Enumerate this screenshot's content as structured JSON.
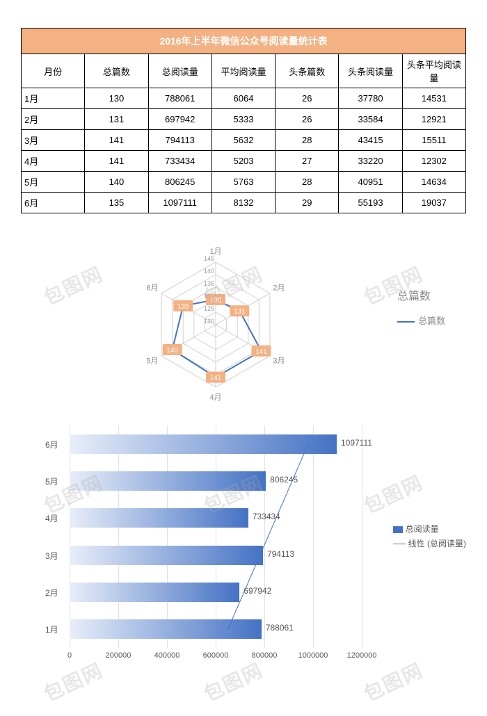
{
  "table": {
    "title": "2016年上半年微信公众号阅读量统计表",
    "title_bg": "#f4b183",
    "title_color": "#ffffff",
    "headers": [
      "月份",
      "总篇数",
      "总阅读量",
      "平均阅读量",
      "头条篇数",
      "头条阅读量",
      "头条平均阅读量"
    ],
    "rows": [
      {
        "month": "1月",
        "a": "130",
        "b": "788061",
        "c": "6064",
        "d": "26",
        "e": "37780",
        "f": "14531"
      },
      {
        "month": "2月",
        "a": "131",
        "b": "697942",
        "c": "5333",
        "d": "26",
        "e": "33584",
        "f": "12921"
      },
      {
        "month": "3月",
        "a": "141",
        "b": "794113",
        "c": "5632",
        "d": "28",
        "e": "43415",
        "f": "15511"
      },
      {
        "month": "4月",
        "a": "141",
        "b": "733434",
        "c": "5203",
        "d": "27",
        "e": "33220",
        "f": "12302"
      },
      {
        "month": "5月",
        "a": "140",
        "b": "806245",
        "c": "5763",
        "d": "28",
        "e": "40951",
        "f": "14634"
      },
      {
        "month": "6月",
        "a": "135",
        "b": "1097111",
        "c": "8132",
        "d": "29",
        "e": "55193",
        "f": "19037"
      }
    ]
  },
  "radar": {
    "title": "总篇数",
    "legend": "总篇数",
    "axis_labels": [
      "1月",
      "2月",
      "3月",
      "4月",
      "5月",
      "6月"
    ],
    "ring_labels": [
      "145",
      "140",
      "135",
      "130",
      "125",
      "120"
    ],
    "ring_label_innermost_center": "130",
    "values": [
      130,
      131,
      141,
      141,
      140,
      135
    ],
    "min": 120,
    "max": 145,
    "line_color": "#4472c4",
    "grid_color": "#d0d0d0",
    "point_label_bg": "#f4b183",
    "point_label_color": "#ffffff"
  },
  "bar": {
    "categories": [
      "1月",
      "2月",
      "3月",
      "4月",
      "5月",
      "6月"
    ],
    "values": [
      788061,
      697942,
      794113,
      733434,
      806245,
      1097111
    ],
    "legend_series": "总阅读量",
    "legend_trend": "线性 (总阅读量)",
    "xmax": 1200000,
    "xtick_step": 200000,
    "bar_color": "#4472c4",
    "grid_color": "#e0e0e0",
    "trend_points": [
      {
        "cat": "1月",
        "v": 650000
      },
      {
        "cat": "6月",
        "v": 980000
      }
    ]
  },
  "watermark": "包图网"
}
